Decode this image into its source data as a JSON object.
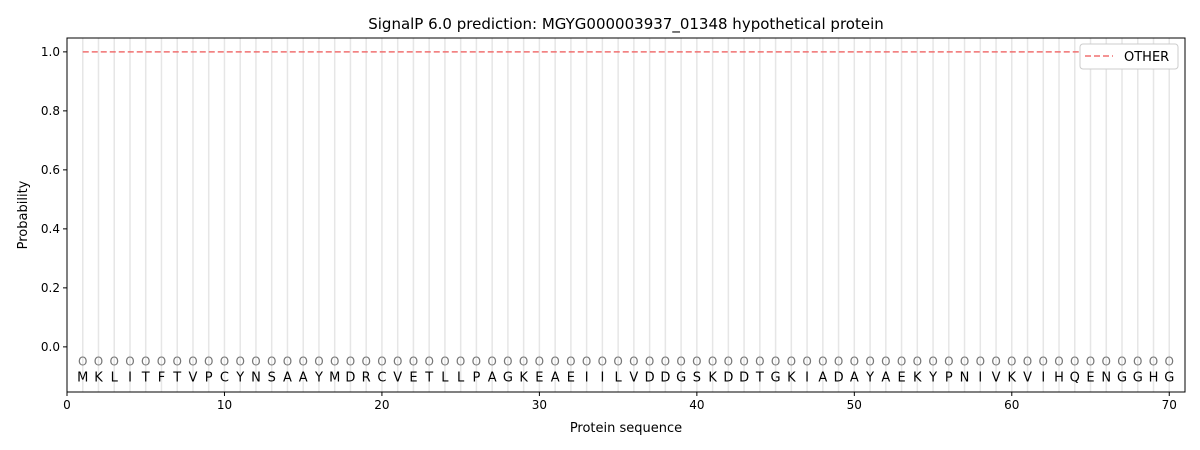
{
  "chart_data": {
    "type": "line",
    "title": "SignalP 6.0 prediction: MGYG000003937_01348 hypothetical protein",
    "xlabel": "Protein sequence",
    "ylabel": "Probability",
    "xlim": [
      0,
      71
    ],
    "ylim": [
      -0.153,
      1.047
    ],
    "xticks": [
      0,
      10,
      20,
      30,
      40,
      50,
      60,
      70
    ],
    "yticks": [
      0.0,
      0.2,
      0.4,
      0.6,
      0.8,
      1.0
    ],
    "ytick_labels": [
      "0.0",
      "0.2",
      "0.4",
      "0.6",
      "0.8",
      "1.0"
    ],
    "grid": "vertical lines at each residue",
    "legend_position": "top-right",
    "sequence": [
      "M",
      "K",
      "L",
      "I",
      "T",
      "F",
      "T",
      "V",
      "P",
      "C",
      "Y",
      "N",
      "S",
      "A",
      "A",
      "Y",
      "M",
      "D",
      "R",
      "C",
      "V",
      "E",
      "T",
      "L",
      "L",
      "P",
      "A",
      "G",
      "K",
      "E",
      "A",
      "E",
      "I",
      "I",
      "L",
      "V",
      "D",
      "D",
      "G",
      "S",
      "K",
      "D",
      "D",
      "T",
      "G",
      "K",
      "I",
      "A",
      "D",
      "A",
      "Y",
      "A",
      "E",
      "K",
      "Y",
      "P",
      "N",
      "I",
      "V",
      "K",
      "V",
      "I",
      "H",
      "Q",
      "E",
      "N",
      "G",
      "G",
      "H",
      "G"
    ],
    "predicted_label": "O",
    "series": [
      {
        "name": "OTHER",
        "color": "#f07070",
        "style": "dashed",
        "x_range": [
          1,
          70
        ],
        "value": 1.0
      }
    ]
  }
}
